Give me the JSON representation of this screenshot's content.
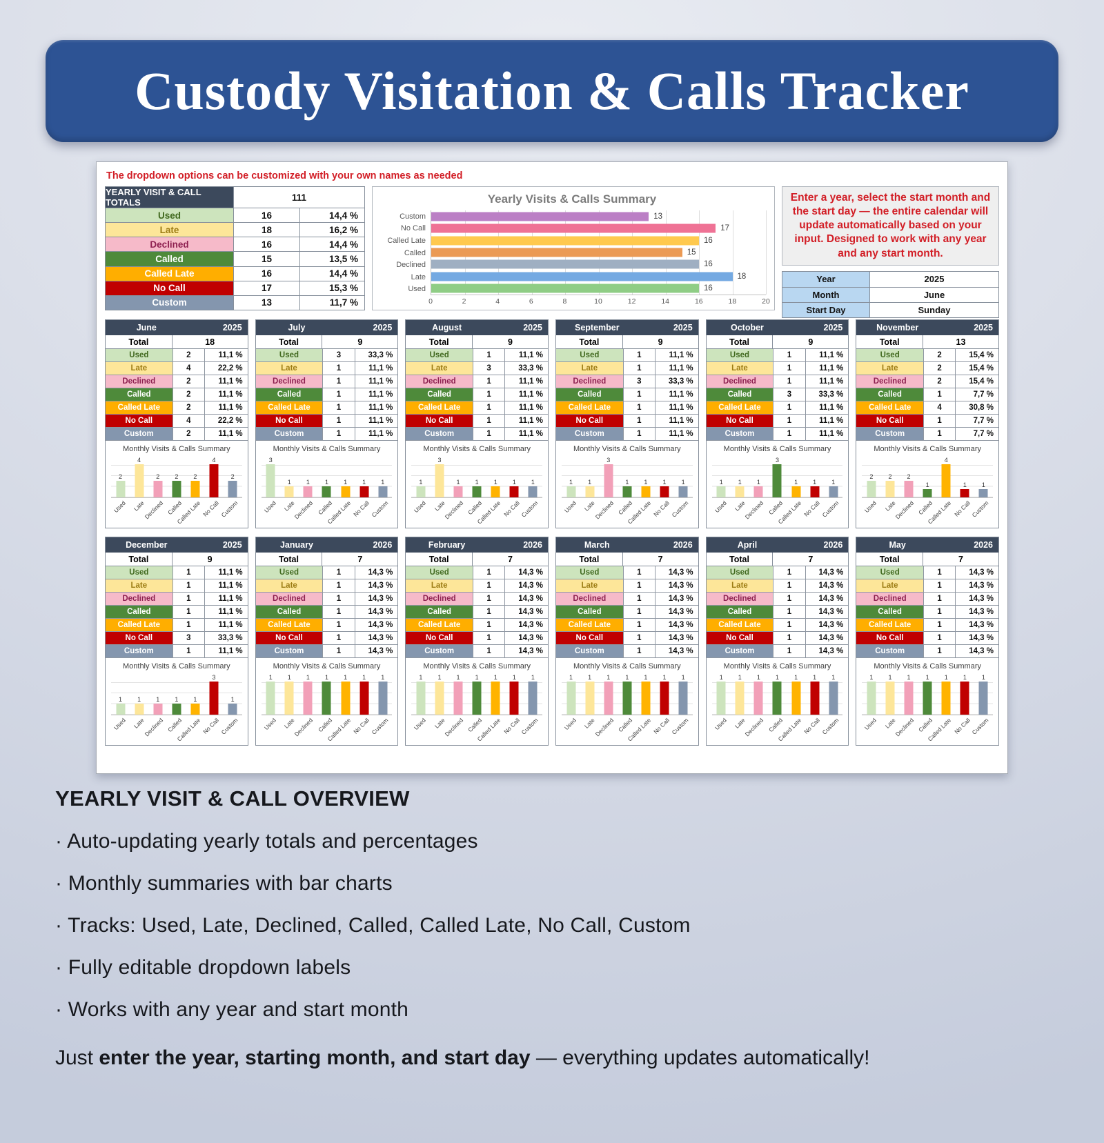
{
  "banner": {
    "title": "Custody Visitation & Calls Tracker",
    "color": "#2d5394"
  },
  "panel": {
    "note": "The dropdown options can be customized with your own names as needed",
    "yearly_totals": {
      "header": "YEARLY VISIT & CALL TOTALS",
      "grand_total": "111",
      "rows": [
        {
          "label": "Used",
          "count": "16",
          "pct": "14,4 %"
        },
        {
          "label": "Late",
          "count": "18",
          "pct": "16,2 %"
        },
        {
          "label": "Declined",
          "count": "16",
          "pct": "14,4 %"
        },
        {
          "label": "Called",
          "count": "15",
          "pct": "13,5 %"
        },
        {
          "label": "Called Late",
          "count": "16",
          "pct": "14,4 %"
        },
        {
          "label": "No Call",
          "count": "17",
          "pct": "15,3 %"
        },
        {
          "label": "Custom",
          "count": "13",
          "pct": "11,7 %"
        }
      ]
    },
    "instructions": "Enter a year, select the start month and the start day — the entire calendar will update automatically based on your input. Designed to work with any year and any start month.",
    "settings": {
      "rows": [
        {
          "label": "Year",
          "value": "2025"
        },
        {
          "label": "Month",
          "value": "June"
        },
        {
          "label": "Start Day",
          "value": "Sunday"
        }
      ],
      "label_bg": "#b9d7f1"
    },
    "header_bg": "#3c495c"
  },
  "category_styles": [
    {
      "label": "Used",
      "bg": "#cde4bd",
      "fg": "#41691f",
      "bar": "#cde4bd"
    },
    {
      "label": "Late",
      "bg": "#fde699",
      "fg": "#9c7c14",
      "bar": "#fde699"
    },
    {
      "label": "Declined",
      "bg": "#f6bac9",
      "fg": "#8e2050",
      "bar": "#f2a0b8"
    },
    {
      "label": "Called",
      "bg": "#4e8a3a",
      "fg": "#ffffff",
      "bar": "#4e8a3a"
    },
    {
      "label": "Called Late",
      "bg": "#ffae00",
      "fg": "#ffffff",
      "bar": "#ffb300"
    },
    {
      "label": "No Call",
      "bg": "#c00000",
      "fg": "#ffffff",
      "bar": "#c00000"
    },
    {
      "label": "Custom",
      "bg": "#8496ae",
      "fg": "#ffffff",
      "bar": "#8496ae"
    }
  ],
  "month_total_label": "Total",
  "month_chart_title": "Monthly Visits & Calls Summary",
  "months": [
    {
      "name": "June",
      "year": "2025",
      "total": "18",
      "counts": [
        2,
        4,
        2,
        2,
        2,
        4,
        2
      ],
      "pcts": [
        "11,1 %",
        "22,2 %",
        "11,1 %",
        "11,1 %",
        "11,1 %",
        "22,2 %",
        "11,1 %"
      ]
    },
    {
      "name": "July",
      "year": "2025",
      "total": "9",
      "counts": [
        3,
        1,
        1,
        1,
        1,
        1,
        1
      ],
      "pcts": [
        "33,3 %",
        "11,1 %",
        "11,1 %",
        "11,1 %",
        "11,1 %",
        "11,1 %",
        "11,1 %"
      ]
    },
    {
      "name": "August",
      "year": "2025",
      "total": "9",
      "counts": [
        1,
        3,
        1,
        1,
        1,
        1,
        1
      ],
      "pcts": [
        "11,1 %",
        "33,3 %",
        "11,1 %",
        "11,1 %",
        "11,1 %",
        "11,1 %",
        "11,1 %"
      ]
    },
    {
      "name": "September",
      "year": "2025",
      "total": "9",
      "counts": [
        1,
        1,
        3,
        1,
        1,
        1,
        1
      ],
      "pcts": [
        "11,1 %",
        "11,1 %",
        "33,3 %",
        "11,1 %",
        "11,1 %",
        "11,1 %",
        "11,1 %"
      ]
    },
    {
      "name": "October",
      "year": "2025",
      "total": "9",
      "counts": [
        1,
        1,
        1,
        3,
        1,
        1,
        1
      ],
      "pcts": [
        "11,1 %",
        "11,1 %",
        "11,1 %",
        "33,3 %",
        "11,1 %",
        "11,1 %",
        "11,1 %"
      ]
    },
    {
      "name": "November",
      "year": "2025",
      "total": "13",
      "counts": [
        2,
        2,
        2,
        1,
        4,
        1,
        1
      ],
      "pcts": [
        "15,4 %",
        "15,4 %",
        "15,4 %",
        "7,7 %",
        "30,8 %",
        "7,7 %",
        "7,7 %"
      ]
    },
    {
      "name": "December",
      "year": "2025",
      "total": "9",
      "counts": [
        1,
        1,
        1,
        1,
        1,
        3,
        1
      ],
      "pcts": [
        "11,1 %",
        "11,1 %",
        "11,1 %",
        "11,1 %",
        "11,1 %",
        "33,3 %",
        "11,1 %"
      ]
    },
    {
      "name": "January",
      "year": "2026",
      "total": "7",
      "counts": [
        1,
        1,
        1,
        1,
        1,
        1,
        1
      ],
      "pcts": [
        "14,3 %",
        "14,3 %",
        "14,3 %",
        "14,3 %",
        "14,3 %",
        "14,3 %",
        "14,3 %"
      ]
    },
    {
      "name": "February",
      "year": "2026",
      "total": "7",
      "counts": [
        1,
        1,
        1,
        1,
        1,
        1,
        1
      ],
      "pcts": [
        "14,3 %",
        "14,3 %",
        "14,3 %",
        "14,3 %",
        "14,3 %",
        "14,3 %",
        "14,3 %"
      ]
    },
    {
      "name": "March",
      "year": "2026",
      "total": "7",
      "counts": [
        1,
        1,
        1,
        1,
        1,
        1,
        1
      ],
      "pcts": [
        "14,3 %",
        "14,3 %",
        "14,3 %",
        "14,3 %",
        "14,3 %",
        "14,3 %",
        "14,3 %"
      ]
    },
    {
      "name": "April",
      "year": "2026",
      "total": "7",
      "counts": [
        1,
        1,
        1,
        1,
        1,
        1,
        1
      ],
      "pcts": [
        "14,3 %",
        "14,3 %",
        "14,3 %",
        "14,3 %",
        "14,3 %",
        "14,3 %",
        "14,3 %"
      ]
    },
    {
      "name": "May",
      "year": "2026",
      "total": "7",
      "counts": [
        1,
        1,
        1,
        1,
        1,
        1,
        1
      ],
      "pcts": [
        "14,3 %",
        "14,3 %",
        "14,3 %",
        "14,3 %",
        "14,3 %",
        "14,3 %",
        "14,3 %"
      ]
    }
  ],
  "chart_data": [
    {
      "type": "bar",
      "orientation": "horizontal",
      "title": "Yearly Visits & Calls Summary",
      "categories": [
        "Custom",
        "No Call",
        "Called Late",
        "Called",
        "Declined",
        "Late",
        "Used"
      ],
      "values": [
        13,
        17,
        16,
        15,
        16,
        18,
        16
      ],
      "bar_colors": [
        "#bb7fc5",
        "#ef7295",
        "#ffc94e",
        "#eb9a54",
        "#9fafc2",
        "#74a9e2",
        "#8fcd85"
      ],
      "xlim": [
        0,
        20
      ],
      "xticks": [
        0,
        2,
        4,
        6,
        8,
        10,
        12,
        14,
        16,
        18,
        20
      ],
      "grid": "vertical",
      "data_labels": true,
      "legend": "none"
    },
    {
      "type": "bar",
      "title": "Monthly Visits & Calls Summary",
      "categories": [
        "Used",
        "Late",
        "Declined",
        "Called",
        "Called Late",
        "No Call",
        "Custom"
      ],
      "series": [
        {
          "name": "June 2025",
          "values": [
            2,
            4,
            2,
            2,
            2,
            4,
            2
          ]
        },
        {
          "name": "July 2025",
          "values": [
            3,
            1,
            1,
            1,
            1,
            1,
            1
          ]
        },
        {
          "name": "August 2025",
          "values": [
            1,
            3,
            1,
            1,
            1,
            1,
            1
          ]
        },
        {
          "name": "September 2025",
          "values": [
            1,
            1,
            3,
            1,
            1,
            1,
            1
          ]
        },
        {
          "name": "October 2025",
          "values": [
            1,
            1,
            1,
            3,
            1,
            1,
            1
          ]
        },
        {
          "name": "November 2025",
          "values": [
            2,
            2,
            2,
            1,
            4,
            1,
            1
          ]
        },
        {
          "name": "December 2025",
          "values": [
            1,
            1,
            1,
            1,
            1,
            3,
            1
          ]
        },
        {
          "name": "January 2026",
          "values": [
            1,
            1,
            1,
            1,
            1,
            1,
            1
          ]
        },
        {
          "name": "February 2026",
          "values": [
            1,
            1,
            1,
            1,
            1,
            1,
            1
          ]
        },
        {
          "name": "March 2026",
          "values": [
            1,
            1,
            1,
            1,
            1,
            1,
            1
          ]
        },
        {
          "name": "April 2026",
          "values": [
            1,
            1,
            1,
            1,
            1,
            1,
            1
          ]
        },
        {
          "name": "May 2026",
          "values": [
            1,
            1,
            1,
            1,
            1,
            1,
            1
          ]
        }
      ],
      "data_labels": true,
      "legend": "none"
    }
  ],
  "overview": {
    "heading": "YEARLY VISIT & CALL OVERVIEW",
    "bullets": [
      "· Auto-updating yearly totals and percentages",
      "· Monthly summaries with bar charts",
      "· Tracks: Used, Late, Declined, Called, Called Late, No Call, Custom",
      "· Fully editable dropdown labels",
      "· Works with any year and start month"
    ],
    "footer_prefix": "Just ",
    "footer_bold": "enter the year, starting month, and start day",
    "footer_suffix": " — everything updates automatically!"
  }
}
